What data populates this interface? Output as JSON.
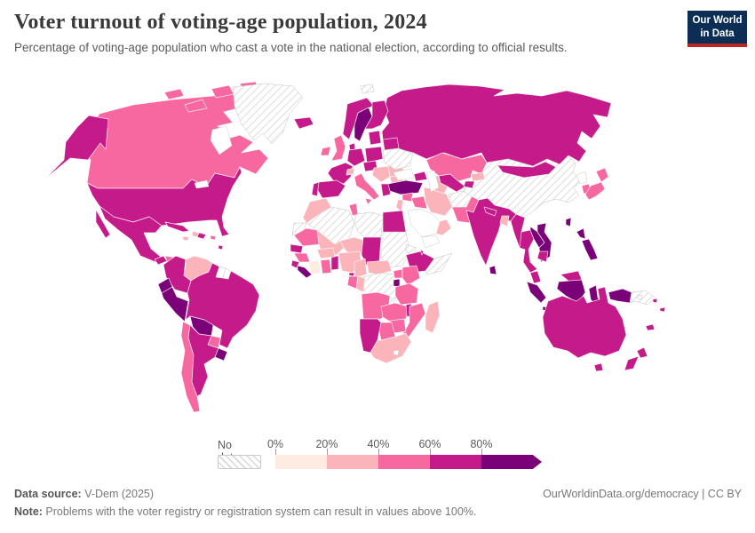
{
  "header": {
    "title": "Voter turnout of voting-age population, 2024",
    "subtitle": "Percentage of voting-age population who cast a vote in the national election, according to official results."
  },
  "logo": {
    "line1": "Our World",
    "line2": "in Data",
    "bg": "#0c2e54",
    "accent": "#bc2726"
  },
  "legend": {
    "no_data_label": "No data",
    "ticks": [
      "0%",
      "20%",
      "40%",
      "60%",
      "80%"
    ]
  },
  "footer": {
    "source_label": "Data source:",
    "source_text": " V-Dem (2025)",
    "note_label": "Note:",
    "note_text": " Problems with the voter registry or registration system can result in values above 100%.",
    "link": "OurWorldinData.org/democracy | CC BY"
  },
  "chart_data": {
    "type": "heatmap",
    "subtype": "choropleth-world-map",
    "title": "Voter turnout of voting-age population, 2024",
    "unit": "%",
    "legend_position": "bottom",
    "bins": [
      {
        "id": "0-20",
        "tick": "0%",
        "color": "#feebe2"
      },
      {
        "id": "20-40",
        "tick": "20%",
        "color": "#fbb4b9"
      },
      {
        "id": "40-60",
        "tick": "40%",
        "color": "#f768a1"
      },
      {
        "id": "60-80",
        "tick": "60%",
        "color": "#c51b8a"
      },
      {
        "id": "80-100",
        "tick": "80%",
        "color": "#7a0177"
      }
    ],
    "no_data_style": {
      "fill": "hatched",
      "stripe": "#d8d8d8"
    },
    "countries": {
      "usa": "60-80",
      "canada": "40-60",
      "mexico": "60-80",
      "greenland": "no-data",
      "guatemala": "60-80",
      "honduras": "40-60",
      "nicaragua": "60-80",
      "costarica": "60-80",
      "panama": "60-80",
      "cuba": "60-80",
      "jamaica": "20-40",
      "haiti": "20-40",
      "domrep": "60-80",
      "puertorico": "40-60",
      "trinidad": "60-80",
      "colombia": "60-80",
      "venezuela": "20-40",
      "guyana": "80-100",
      "suriname": "not-shown",
      "frguiana": "not-shown",
      "ecuador": "80-100",
      "peru": "80-100",
      "brazil": "60-80",
      "bolivia": "80-100",
      "paraguay": "40-60",
      "chile": "40-60",
      "argentina": "60-80",
      "uruguay": "80-100",
      "iceland": "60-80",
      "ireland": "40-60",
      "uk": "40-60",
      "norway": "60-80",
      "sweden": "80-100",
      "finland": "60-80",
      "denmark": "60-80",
      "baltics": "60-80",
      "poland": "60-80",
      "germany": "60-80",
      "france": "60-80",
      "spain": "60-80",
      "portugal": "60-80",
      "switzerland": "20-40",
      "czechia": "60-80",
      "italy": "40-60",
      "balkans": "20-40",
      "romania": "20-40",
      "bulgaria": "20-40",
      "greece": "60-80",
      "belarus": "60-80",
      "ukraine": "no-data",
      "russia": "60-80",
      "svalbard": "no-data",
      "caucasus": "60-80",
      "turkey": "80-100",
      "syria": "40-60",
      "iraq": "40-60",
      "levant": "20-40",
      "iran": "20-40",
      "saudi": "not-shown",
      "yemen": "not-shown",
      "oman": "20-40",
      "afghanistan": "no-data",
      "pakistan": "40-60",
      "kazakhstan": "40-60",
      "uzbekistan": "60-80",
      "turkmenistan": "20-40",
      "kyrgyzstan": "20-40",
      "tajikistan": "60-80",
      "india": "60-80",
      "nepal": "60-80",
      "bangladesh": "20-40",
      "srilanka": "80-100",
      "myanmar": "60-80",
      "thailand": "60-80",
      "laos": "80-100",
      "vietnam": "80-100",
      "cambodia": "60-80",
      "malaysia": "60-80",
      "indonesia": "80-100",
      "png": "no-data",
      "philippines": "80-100",
      "taiwan": "80-100",
      "china": "no-data",
      "mongolia": "60-80",
      "nkorea": "not-shown",
      "skorea": "40-60",
      "japan": "40-60",
      "morocco": "20-40",
      "wsahara": "no-data",
      "algeria": "no-data",
      "tunisia": "40-60",
      "libya": "no-data",
      "egypt": "60-80",
      "mauritania": "40-60",
      "mali": "20-40",
      "niger": "20-40",
      "chad": "60-80",
      "sudan": "no-data",
      "eritrea": "no-data",
      "ethiopia": "60-80",
      "djibouti": "60-80",
      "somalia": "no-data",
      "senegal": "60-80",
      "guinea": "40-60",
      "sierraleone": "60-80",
      "liberia": "80-100",
      "ivorycoast": "0-20",
      "ghana": "40-60",
      "togobenin": "60-80",
      "burkina": "20-40",
      "nigeria": "20-40",
      "cameroon": "20-40",
      "car": "20-40",
      "drc": "no-data",
      "gabon": "40-60",
      "congo": "20-40",
      "eqguinea": "60-80",
      "uganda": "40-60",
      "kenya": "40-60",
      "rwandaburundi": "80-100",
      "tanzania": "40-60",
      "angola": "40-60",
      "zambia": "40-60",
      "malawi": "60-80",
      "mozambique": "40-60",
      "zimbabwe": "40-60",
      "botswana": "40-60",
      "namibia": "60-80",
      "southafrica": "20-40",
      "lesotho": "not-shown",
      "madagascar": "20-40",
      "australia": "60-80",
      "newzealand": "60-80",
      "fiji": "60-80",
      "vanuatu": "60-80",
      "newcaledonia": "60-80",
      "solomon": "no-data"
    }
  }
}
